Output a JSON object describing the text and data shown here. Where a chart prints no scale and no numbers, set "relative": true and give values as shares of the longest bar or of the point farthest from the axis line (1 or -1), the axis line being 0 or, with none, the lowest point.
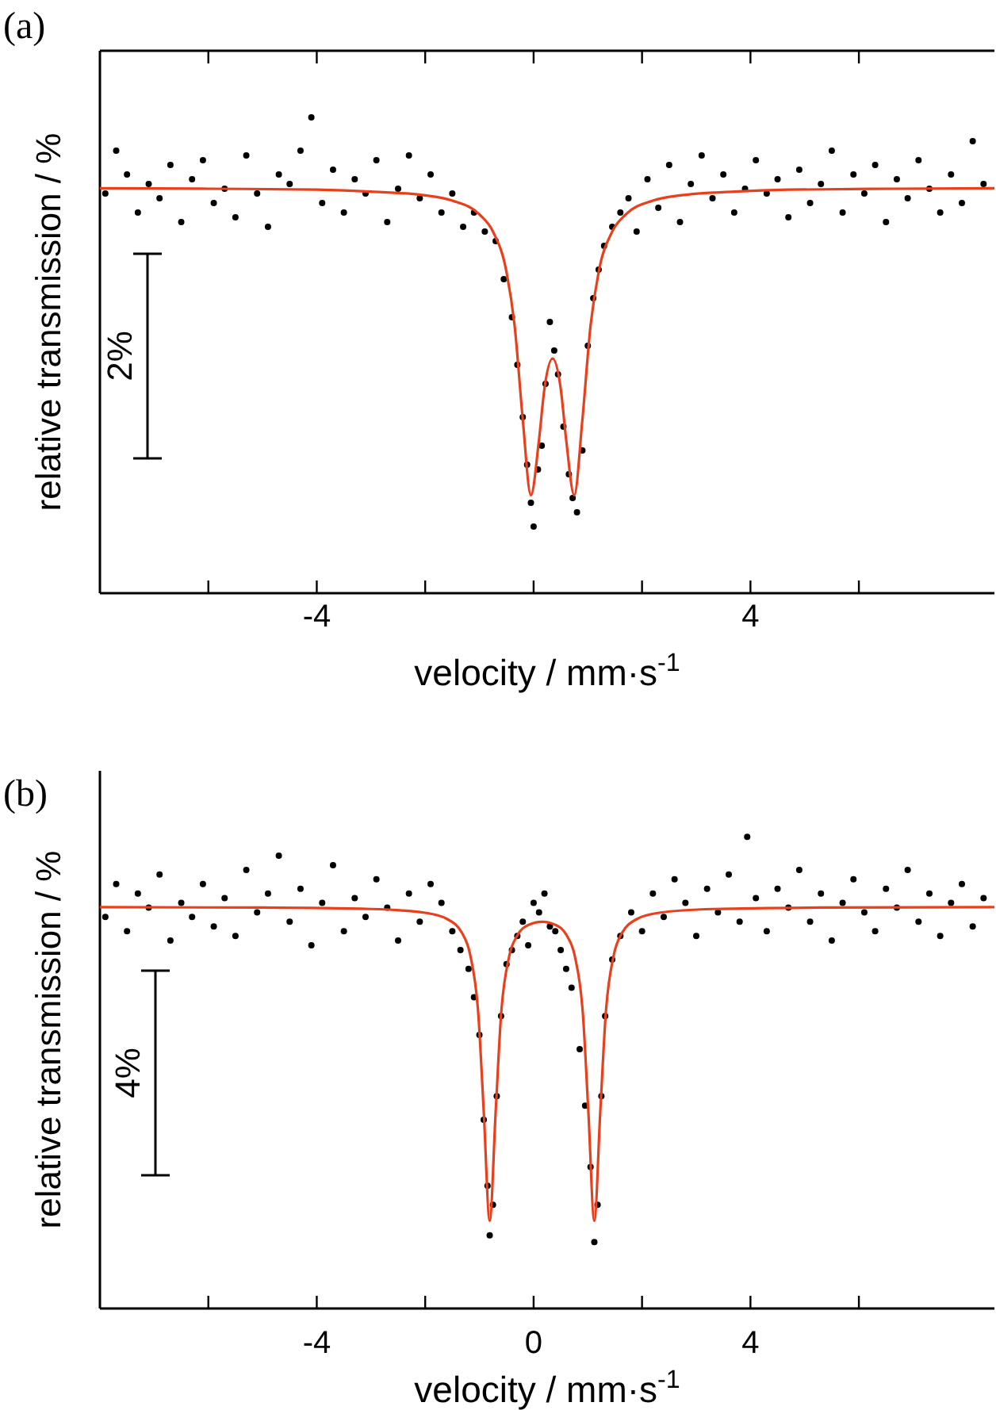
{
  "chart_data": [
    {
      "type": "scatter",
      "title": "(a)",
      "xlabel": "velocity / mm·s$^{-1}$",
      "ylabel": "relative transmission / %",
      "annotations": [
        "2%"
      ],
      "relative": true,
      "tick_labels": "x",
      "xlim": [
        -8,
        8.5
      ],
      "xticks": [
        {
          "value": -6,
          "label": null
        },
        {
          "value": -4,
          "label": "-4"
        },
        {
          "value": -2,
          "label": null
        },
        {
          "value": 0,
          "label": null
        },
        {
          "value": 2,
          "label": null
        },
        {
          "value": 4,
          "label": "4"
        },
        {
          "value": 6,
          "label": null
        }
      ],
      "series": [
        {
          "type": "scatter",
          "color": "#000000",
          "marker": "circle",
          "x": [
            -7.9,
            -7.7,
            -7.5,
            -7.3,
            -7.1,
            -6.9,
            -6.7,
            -6.5,
            -6.3,
            -6.1,
            -5.9,
            -5.7,
            -5.5,
            -5.3,
            -5.1,
            -4.9,
            -4.7,
            -4.5,
            -4.3,
            -4.1,
            -3.9,
            -3.7,
            -3.5,
            -3.3,
            -3.1,
            -2.9,
            -2.7,
            -2.5,
            -2.3,
            -2.1,
            -1.9,
            -1.7,
            -1.5,
            -1.3,
            -1.1,
            -0.9,
            -0.7,
            -0.55,
            -0.4,
            -0.3,
            -0.2,
            -0.12,
            -0.05,
            0,
            0.08,
            0.15,
            0.22,
            0.3,
            0.38,
            0.45,
            0.55,
            0.65,
            0.72,
            0.8,
            0.9,
            1,
            1.1,
            1.2,
            1.3,
            1.45,
            1.6,
            1.75,
            1.9,
            2.1,
            2.3,
            2.5,
            2.7,
            2.9,
            3.1,
            3.3,
            3.5,
            3.7,
            3.9,
            4.1,
            4.3,
            4.5,
            4.7,
            4.9,
            5.1,
            5.3,
            5.5,
            5.7,
            5.9,
            6.1,
            6.3,
            6.5,
            6.7,
            6.9,
            7.1,
            7.3,
            7.5,
            7.7,
            7.9,
            8.1,
            8.3
          ],
          "values": [
            0.84,
            0.93,
            0.88,
            0.8,
            0.86,
            0.83,
            0.9,
            0.78,
            0.87,
            0.91,
            0.82,
            0.85,
            0.79,
            0.92,
            0.84,
            0.77,
            0.88,
            0.86,
            0.93,
            1,
            0.82,
            0.89,
            0.8,
            0.87,
            0.84,
            0.91,
            0.78,
            0.85,
            0.92,
            0.83,
            0.88,
            0.8,
            0.84,
            0.77,
            0.8,
            0.76,
            0.74,
            0.66,
            0.58,
            0.48,
            0.37,
            0.27,
            0.19,
            0.14,
            0.26,
            0.31,
            0.44,
            0.57,
            0.51,
            0.46,
            0.35,
            0.25,
            0.2,
            0.17,
            0.3,
            0.52,
            0.62,
            0.68,
            0.73,
            0.77,
            0.8,
            0.83,
            0.76,
            0.87,
            0.81,
            0.9,
            0.78,
            0.86,
            0.92,
            0.83,
            0.88,
            0.8,
            0.85,
            0.91,
            0.84,
            0.87,
            0.79,
            0.89,
            0.82,
            0.86,
            0.93,
            0.8,
            0.88,
            0.84,
            0.9,
            0.78,
            0.87,
            0.83,
            0.91,
            0.85,
            0.8,
            0.88,
            0.82,
            0.95,
            0.86
          ]
        },
        {
          "type": "line",
          "color": "#e8401c",
          "x": [
            -8,
            -6,
            -4,
            -3,
            -2,
            -1.5,
            -1,
            -0.75,
            -0.5,
            -0.35,
            -0.2,
            -0.05,
            0.1,
            0.2,
            0.35,
            0.5,
            0.6,
            0.75,
            0.9,
            1.05,
            1.2,
            1.45,
            1.7,
            2.2,
            2.7,
            3.7,
            4.7,
            6.7,
            8.5
          ],
          "values": [
            0.851,
            0.85,
            0.848,
            0.844,
            0.836,
            0.825,
            0.796,
            0.76,
            0.675,
            0.562,
            0.365,
            0.206,
            0.323,
            0.43,
            0.493,
            0.43,
            0.323,
            0.206,
            0.365,
            0.562,
            0.675,
            0.76,
            0.796,
            0.825,
            0.836,
            0.844,
            0.848,
            0.85,
            0.851
          ]
        }
      ]
    },
    {
      "type": "scatter",
      "title": "(b)",
      "xlabel": "velocity / mm·s$^{-1}$",
      "ylabel": "relative transmission / %",
      "annotations": [
        "4%"
      ],
      "relative": true,
      "tick_labels": "x",
      "xlim": [
        -8,
        8.5
      ],
      "xticks": [
        {
          "value": -6,
          "label": null
        },
        {
          "value": -4,
          "label": "-4"
        },
        {
          "value": -2,
          "label": null
        },
        {
          "value": 0,
          "label": "0"
        },
        {
          "value": 2,
          "label": null
        },
        {
          "value": 4,
          "label": "4"
        },
        {
          "value": 6,
          "label": null
        }
      ],
      "series": [
        {
          "type": "scatter",
          "color": "#000000",
          "marker": "circle",
          "x": [
            -7.9,
            -7.7,
            -7.5,
            -7.3,
            -7.1,
            -6.9,
            -6.7,
            -6.5,
            -6.3,
            -6.1,
            -5.9,
            -5.7,
            -5.5,
            -5.3,
            -5.1,
            -4.9,
            -4.7,
            -4.5,
            -4.3,
            -4.1,
            -3.9,
            -3.7,
            -3.5,
            -3.3,
            -3.1,
            -2.9,
            -2.7,
            -2.5,
            -2.3,
            -2.1,
            -1.9,
            -1.7,
            -1.5,
            -1.35,
            -1.2,
            -1.1,
            -1,
            -0.92,
            -0.85,
            -0.81,
            -0.75,
            -0.68,
            -0.6,
            -0.5,
            -0.4,
            -0.3,
            -0.2,
            -0.1,
            0,
            0.1,
            0.2,
            0.3,
            0.4,
            0.5,
            0.6,
            0.7,
            0.85,
            0.95,
            1.05,
            1.12,
            1.18,
            1.25,
            1.32,
            1.45,
            1.6,
            1.8,
            2,
            2.2,
            2.4,
            2.6,
            2.8,
            3,
            3.2,
            3.4,
            3.6,
            3.8,
            3.94,
            4.1,
            4.3,
            4.5,
            4.7,
            4.9,
            5.1,
            5.3,
            5.5,
            5.7,
            5.9,
            6.1,
            6.3,
            6.5,
            6.7,
            6.9,
            7.1,
            7.3,
            7.5,
            7.7,
            7.9,
            8.1,
            8.3
          ],
          "values": [
            0.83,
            0.9,
            0.8,
            0.88,
            0.85,
            0.92,
            0.78,
            0.86,
            0.83,
            0.9,
            0.81,
            0.87,
            0.79,
            0.93,
            0.84,
            0.88,
            0.96,
            0.82,
            0.89,
            0.77,
            0.86,
            0.94,
            0.8,
            0.87,
            0.83,
            0.91,
            0.85,
            0.78,
            0.88,
            0.82,
            0.9,
            0.86,
            0.8,
            0.76,
            0.72,
            0.66,
            0.58,
            0.4,
            0.26,
            0.155,
            0.22,
            0.45,
            0.62,
            0.73,
            0.76,
            0.79,
            0.82,
            0.77,
            0.86,
            0.84,
            0.88,
            0.81,
            0.8,
            0.76,
            0.72,
            0.68,
            0.55,
            0.43,
            0.3,
            0.141,
            0.22,
            0.45,
            0.62,
            0.74,
            0.79,
            0.84,
            0.8,
            0.88,
            0.83,
            0.91,
            0.86,
            0.79,
            0.89,
            0.84,
            0.92,
            0.82,
            1,
            0.87,
            0.8,
            0.89,
            0.85,
            0.93,
            0.82,
            0.88,
            0.78,
            0.86,
            0.91,
            0.84,
            0.8,
            0.89,
            0.85,
            0.93,
            0.82,
            0.88,
            0.79,
            0.86,
            0.9,
            0.81,
            0.87
          ]
        },
        {
          "type": "line",
          "color": "#e8401c",
          "x": [
            -8,
            -5,
            -3,
            -2,
            -1.6,
            -1.32,
            -1.17,
            -1.02,
            -0.92,
            -0.81,
            -0.7,
            -0.6,
            -0.45,
            -0.3,
            -0.1,
            0.155,
            0.41,
            0.61,
            0.76,
            0.91,
            1.01,
            1.12,
            1.23,
            1.33,
            1.48,
            1.63,
            1.91,
            2.31,
            3.31,
            5.31,
            8.5
          ],
          "values": [
            0.851,
            0.85,
            0.847,
            0.839,
            0.826,
            0.796,
            0.75,
            0.624,
            0.418,
            0.186,
            0.417,
            0.623,
            0.747,
            0.791,
            0.813,
            0.82,
            0.813,
            0.791,
            0.747,
            0.623,
            0.417,
            0.186,
            0.418,
            0.624,
            0.75,
            0.796,
            0.826,
            0.839,
            0.847,
            0.85,
            0.851
          ]
        }
      ]
    }
  ]
}
